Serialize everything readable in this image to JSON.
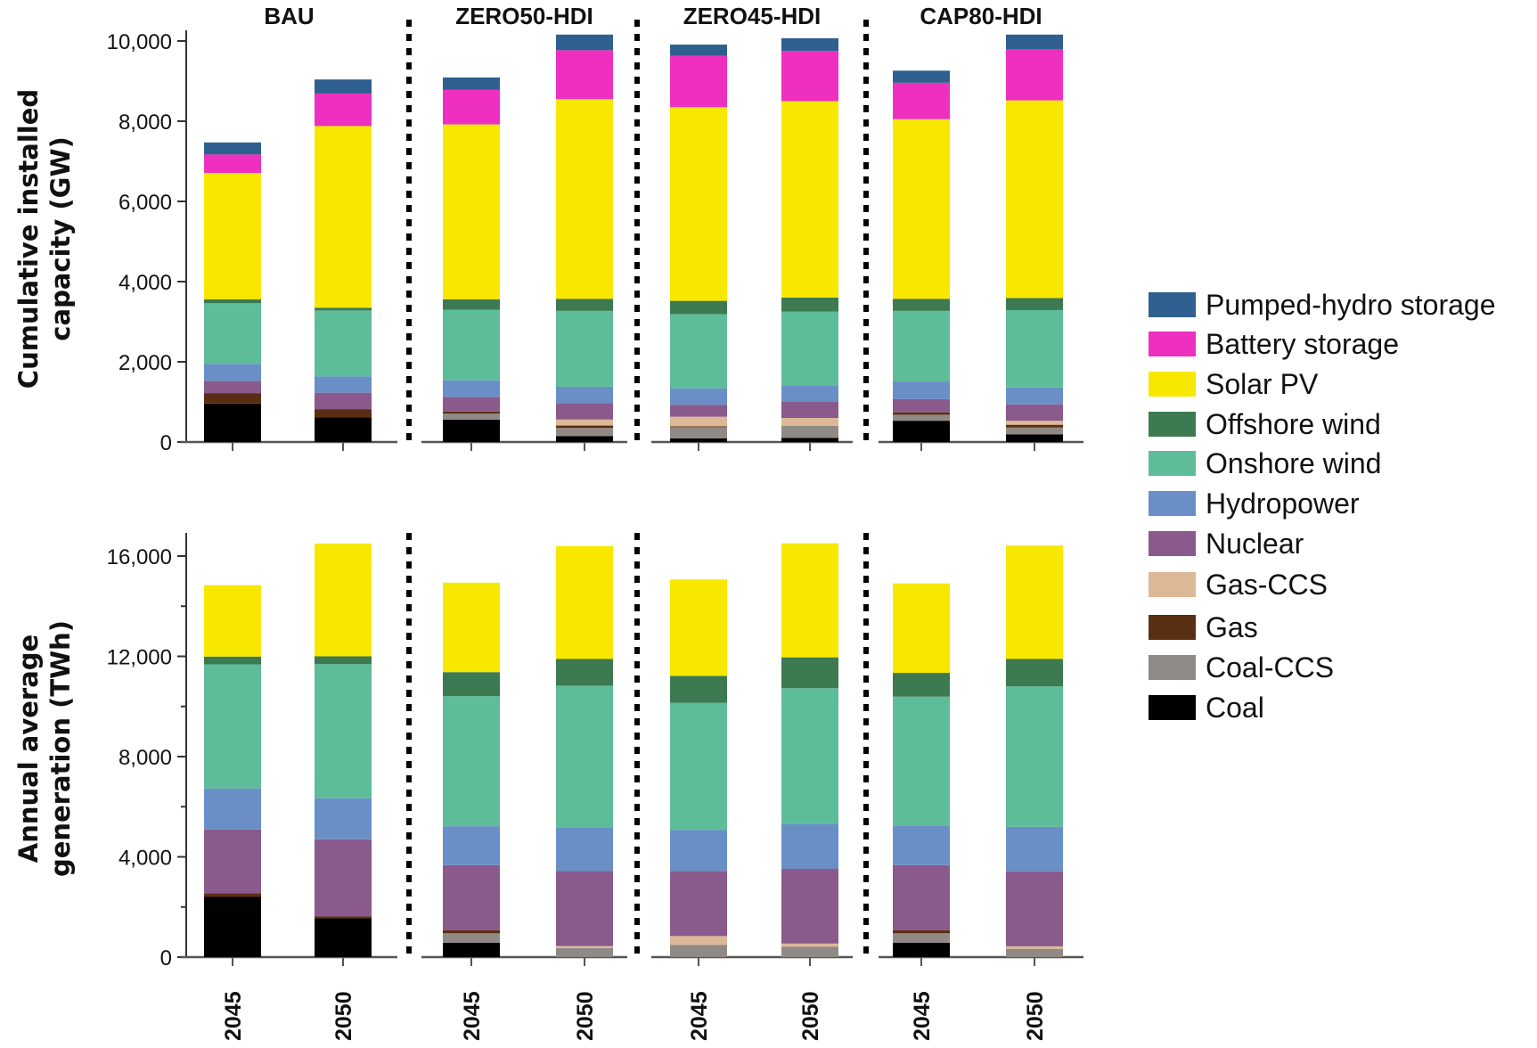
{
  "scenarios": [
    "BAU",
    "ZERO50-HDI",
    "ZERO45-HDI",
    "CAP80-HDI"
  ],
  "years": [
    "2045",
    "2050"
  ],
  "legend": [
    {
      "name": "Pumped-hydro storage",
      "color": "#2f5f8f"
    },
    {
      "name": "Battery storage",
      "color": "#ee2fbf"
    },
    {
      "name": "Solar PV",
      "color": "#f8e800"
    },
    {
      "name": "Offshore wind",
      "color": "#3d7a52"
    },
    {
      "name": "Onshore wind",
      "color": "#5dbd99"
    },
    {
      "name": "Hydropower",
      "color": "#6a8fc6"
    },
    {
      "name": "Nuclear",
      "color": "#8a5a8c"
    },
    {
      "name": "Gas-CCS",
      "color": "#dcb896"
    },
    {
      "name": "Gas",
      "color": "#5a2e12"
    },
    {
      "name": "Coal-CCS",
      "color": "#8f8a86"
    },
    {
      "name": "Coal",
      "color": "#000000"
    }
  ],
  "chart_data": [
    {
      "type": "bar",
      "stacked": true,
      "ylabel": [
        "Cumulative installed",
        "capacity (GW)"
      ],
      "ylim": [
        0,
        10000
      ],
      "yticks": [
        0,
        2000,
        4000,
        6000,
        8000,
        10000
      ],
      "ytick_labels": [
        "0",
        "2,000",
        "4,000",
        "6,000",
        "8,000",
        "10,000"
      ],
      "categories": [
        "BAU 2045",
        "BAU 2050",
        "ZERO50-HDI 2045",
        "ZERO50-HDI 2050",
        "ZERO45-HDI 2045",
        "ZERO45-HDI 2050",
        "CAP80-HDI 2045",
        "CAP80-HDI 2050"
      ],
      "series": [
        {
          "name": "Coal",
          "values": [
            960,
            610,
            560,
            150,
            90,
            100,
            530,
            190
          ]
        },
        {
          "name": "Coal-CCS",
          "values": [
            0,
            0,
            150,
            200,
            280,
            300,
            150,
            170
          ]
        },
        {
          "name": "Gas",
          "values": [
            260,
            210,
            50,
            60,
            20,
            0,
            60,
            70
          ]
        },
        {
          "name": "Gas-CCS",
          "values": [
            0,
            0,
            0,
            150,
            240,
            200,
            0,
            100
          ]
        },
        {
          "name": "Nuclear",
          "values": [
            300,
            410,
            360,
            410,
            300,
            400,
            330,
            410
          ]
        },
        {
          "name": "Hydropower",
          "values": [
            430,
            410,
            420,
            410,
            410,
            400,
            440,
            420
          ]
        },
        {
          "name": "Onshore wind",
          "values": [
            1510,
            1640,
            1760,
            1890,
            1850,
            1850,
            1760,
            1930
          ]
        },
        {
          "name": "Offshore wind",
          "values": [
            100,
            70,
            260,
            300,
            330,
            350,
            300,
            300
          ]
        },
        {
          "name": "Solar PV",
          "values": [
            3150,
            4530,
            4360,
            4980,
            4830,
            4900,
            4480,
            4930
          ]
        },
        {
          "name": "Battery storage",
          "values": [
            460,
            810,
            860,
            1220,
            1280,
            1250,
            910,
            1280
          ]
        },
        {
          "name": "Pumped-hydro storage",
          "values": [
            300,
            350,
            310,
            390,
            280,
            320,
            300,
            360
          ]
        }
      ]
    },
    {
      "type": "bar",
      "stacked": true,
      "ylabel": [
        "Annual average",
        "generation (TWh)"
      ],
      "ylim": [
        0,
        17000
      ],
      "yticks": [
        0,
        4000,
        8000,
        12000,
        16000
      ],
      "ytick_labels": [
        "0",
        "4,000",
        "8,000",
        "12,000",
        "16,000"
      ],
      "minor_ticks": [
        2000,
        6000,
        10000,
        14000
      ],
      "categories": [
        "BAU 2045",
        "BAU 2050",
        "ZERO50-HDI 2045",
        "ZERO50-HDI 2050",
        "ZERO45-HDI 2045",
        "ZERO45-HDI 2050",
        "CAP80-HDI 2045",
        "CAP80-HDI 2050"
      ],
      "series": [
        {
          "name": "Coal",
          "values": [
            2400,
            1550,
            570,
            0,
            0,
            0,
            570,
            0
          ]
        },
        {
          "name": "Coal-CCS",
          "values": [
            0,
            0,
            380,
            360,
            480,
            420,
            380,
            330
          ]
        },
        {
          "name": "Gas",
          "values": [
            150,
            80,
            120,
            0,
            0,
            0,
            120,
            0
          ]
        },
        {
          "name": "Gas-CCS",
          "values": [
            0,
            0,
            0,
            80,
            360,
            120,
            0,
            100
          ]
        },
        {
          "name": "Nuclear",
          "values": [
            2540,
            3070,
            2600,
            2990,
            2600,
            2980,
            2600,
            2980
          ]
        },
        {
          "name": "Hydropower",
          "values": [
            1640,
            1640,
            1550,
            1750,
            1630,
            1790,
            1570,
            1790
          ]
        },
        {
          "name": "Onshore wind",
          "values": [
            4950,
            5350,
            5190,
            5650,
            5080,
            5420,
            5150,
            5600
          ]
        },
        {
          "name": "Offshore wind",
          "values": [
            310,
            310,
            960,
            1070,
            1070,
            1230,
            950,
            1100
          ]
        },
        {
          "name": "Solar PV",
          "values": [
            2850,
            4500,
            3570,
            4500,
            3850,
            4550,
            3570,
            4520
          ]
        }
      ]
    }
  ]
}
